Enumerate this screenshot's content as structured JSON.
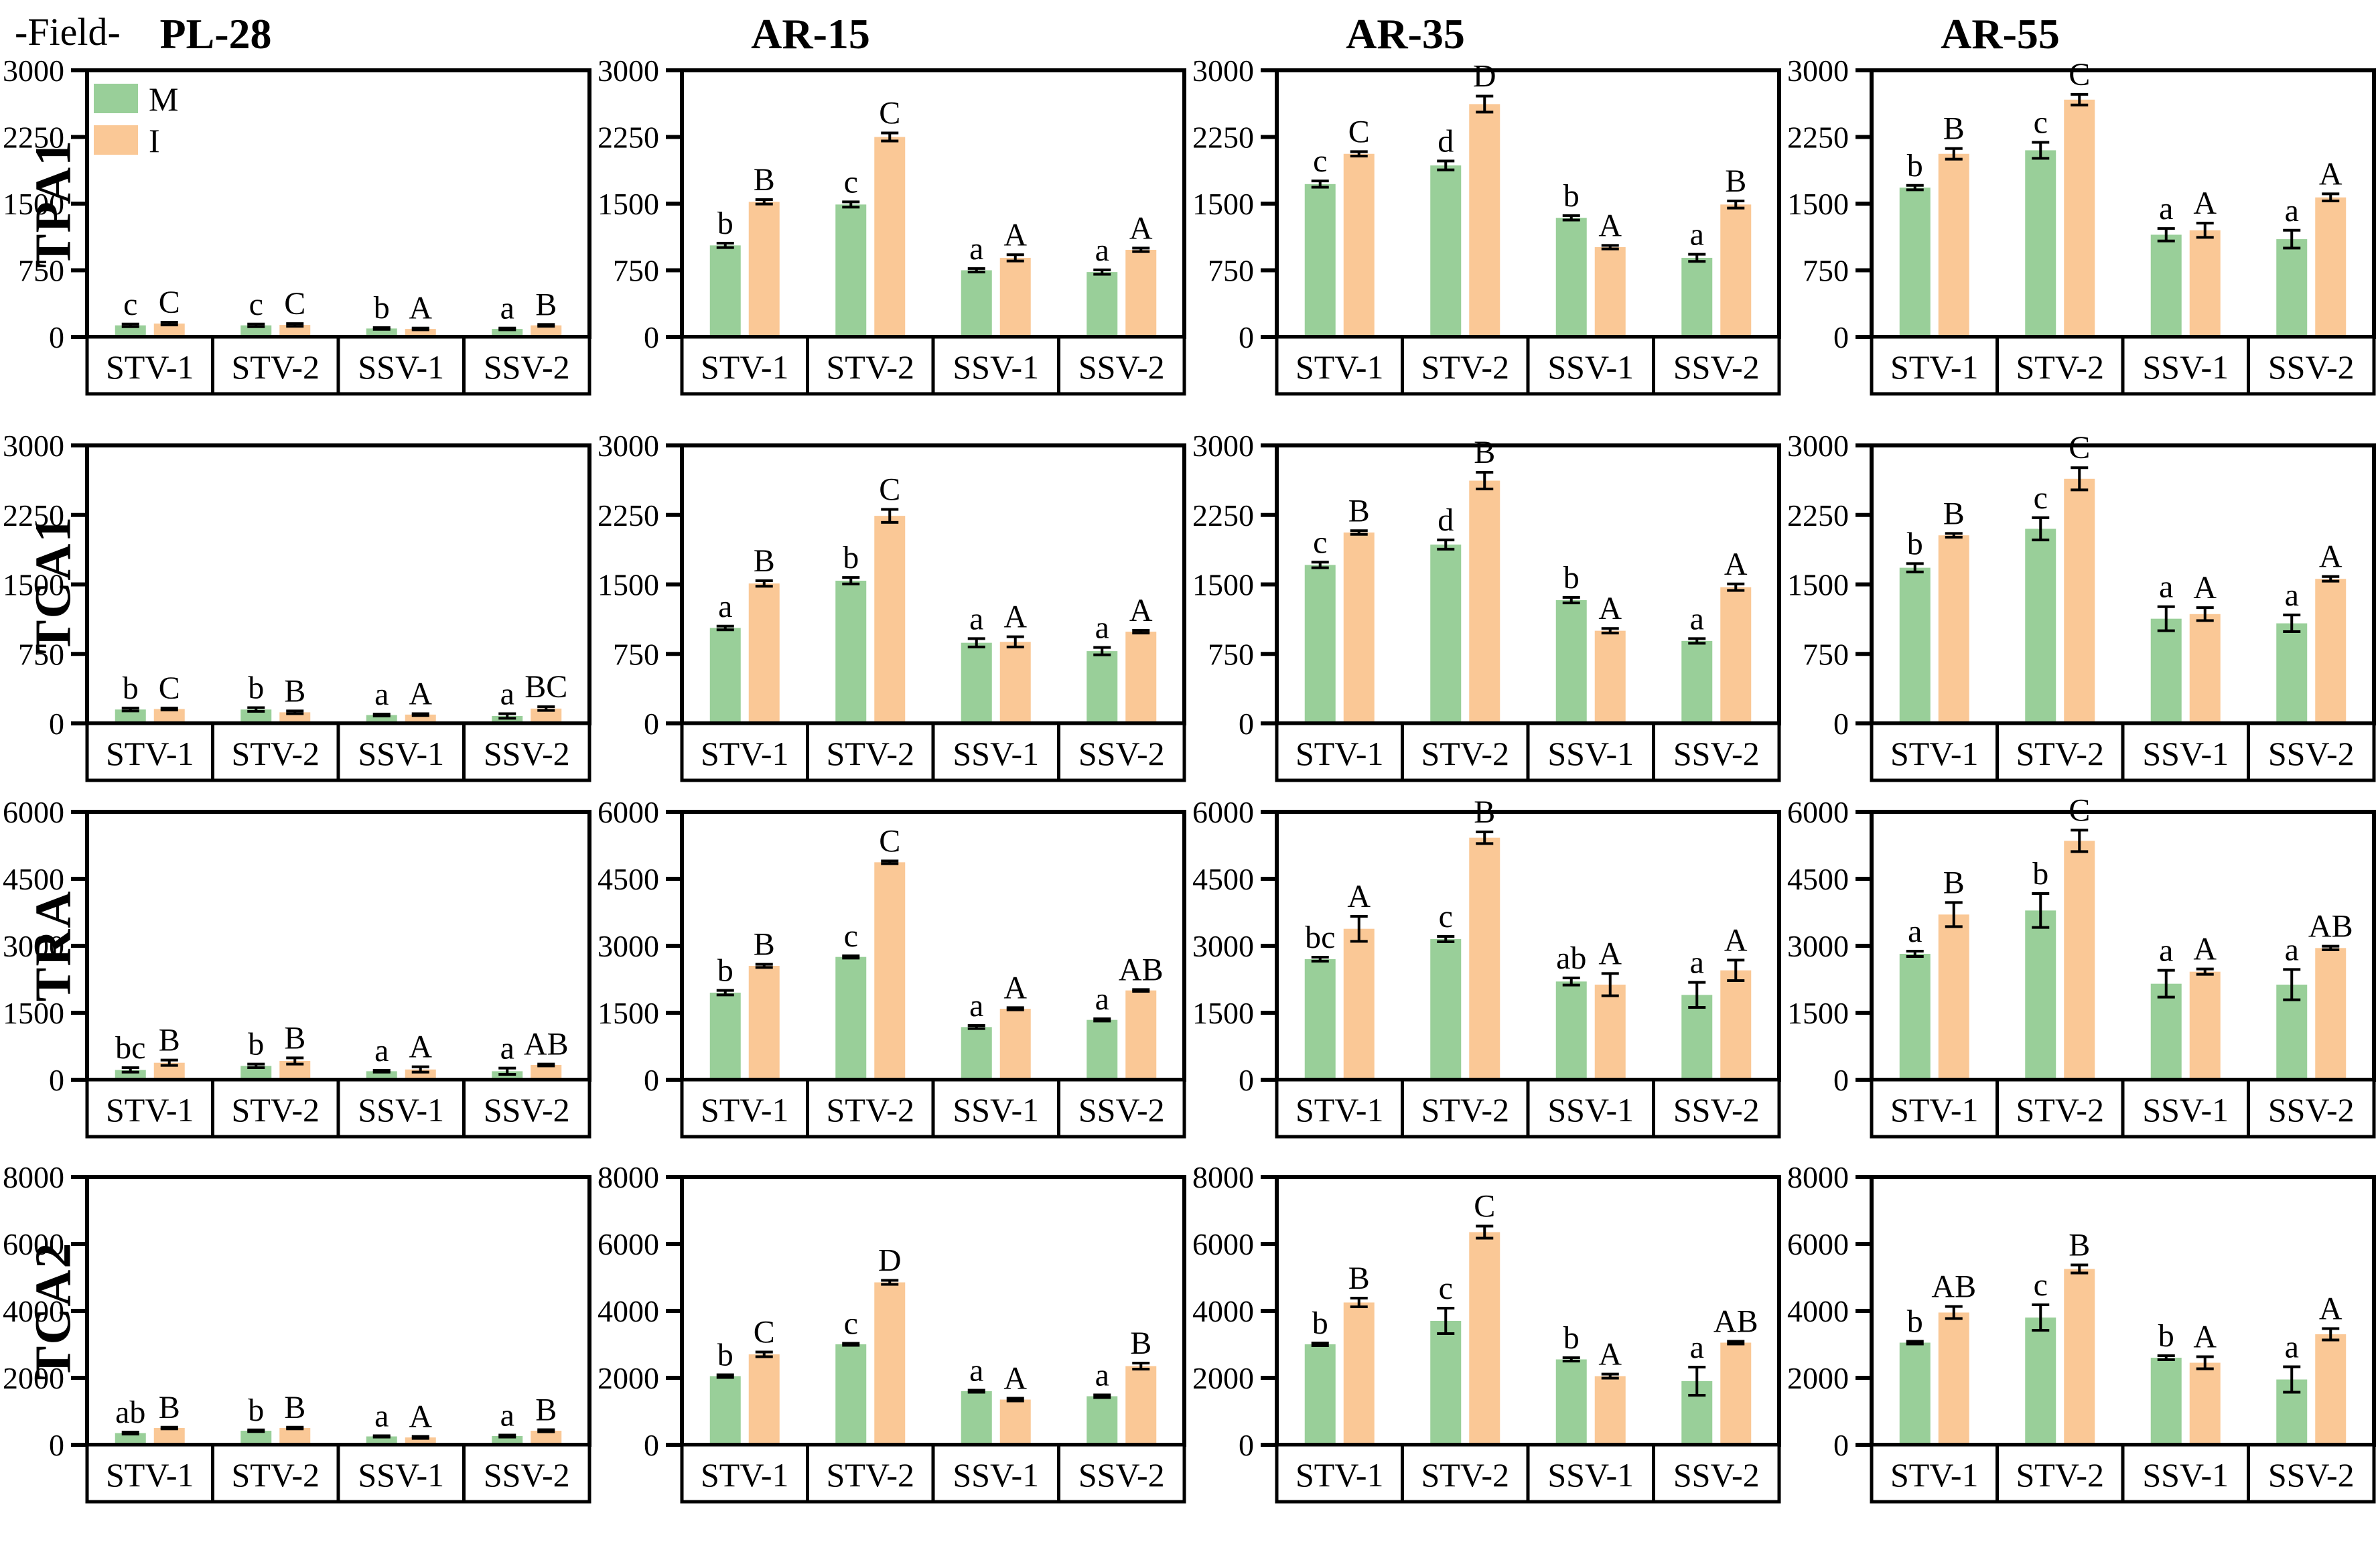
{
  "field_label": "-Field-",
  "column_titles": [
    "PL-28",
    "AR-15",
    "AR-35",
    "AR-55"
  ],
  "row_labels": [
    "TPA1",
    "TCA1",
    "TRA",
    "TCA2"
  ],
  "categories": [
    "STV-1",
    "STV-2",
    "SSV-1",
    "SSV-2"
  ],
  "legend": {
    "position": "top-left of first subplot",
    "items": [
      {
        "label": "M",
        "color": "#99CF99"
      },
      {
        "label": "I",
        "color": "#FAC896"
      }
    ]
  },
  "colors": {
    "bar_m": "#99CF99",
    "bar_i": "#FAC896",
    "axis": "#000000",
    "background": "#ffffff"
  },
  "chart_data": {
    "type": "bar",
    "layout": "4x4 grid of grouped bar subplots with error bars and significance letters",
    "categories": [
      "STV-1",
      "STV-2",
      "SSV-1",
      "SSV-2"
    ],
    "series_names": [
      "M",
      "I"
    ],
    "columns": [
      "PL-28",
      "AR-15",
      "AR-35",
      "AR-55"
    ],
    "grid": false,
    "rows": [
      {
        "ylabel": "TPA1",
        "ylim": [
          0,
          3000
        ],
        "yticks": [
          0,
          750,
          1500,
          2250,
          3000
        ],
        "cells": [
          {
            "column": "PL-28",
            "M": {
              "values": [
                130,
                130,
                95,
                90
              ],
              "errors": [
                15,
                15,
                10,
                10
              ],
              "letters": [
                "c",
                "c",
                "b",
                "a"
              ]
            },
            "I": {
              "values": [
                150,
                135,
                90,
                130
              ],
              "errors": [
                15,
                15,
                10,
                10
              ],
              "letters": [
                "C",
                "C",
                "A",
                "B"
              ]
            }
          },
          {
            "column": "AR-15",
            "M": {
              "values": [
                1030,
                1490,
                750,
                730
              ],
              "errors": [
                25,
                30,
                20,
                25
              ],
              "letters": [
                "b",
                "c",
                "a",
                "a"
              ]
            },
            "I": {
              "values": [
                1520,
                2250,
                890,
                980
              ],
              "errors": [
                25,
                45,
                35,
                20
              ],
              "letters": [
                "B",
                "C",
                "A",
                "A"
              ]
            }
          },
          {
            "column": "AR-35",
            "M": {
              "values": [
                1720,
                1930,
                1340,
                890
              ],
              "errors": [
                35,
                50,
                25,
                40
              ],
              "letters": [
                "c",
                "d",
                "b",
                "a"
              ]
            },
            "I": {
              "values": [
                2060,
                2620,
                1010,
                1490
              ],
              "errors": [
                25,
                90,
                20,
                40
              ],
              "letters": [
                "C",
                "D",
                "A",
                "B"
              ]
            }
          },
          {
            "column": "AR-55",
            "M": {
              "values": [
                1680,
                2100,
                1150,
                1100
              ],
              "errors": [
                25,
                90,
                70,
                100
              ],
              "letters": [
                "b",
                "c",
                "a",
                "a"
              ]
            },
            "I": {
              "values": [
                2060,
                2670,
                1200,
                1570
              ],
              "errors": [
                60,
                60,
                80,
                40
              ],
              "letters": [
                "B",
                "C",
                "A",
                "A"
              ]
            }
          }
        ]
      },
      {
        "ylabel": "TCA1",
        "ylim": [
          0,
          3000
        ],
        "yticks": [
          0,
          750,
          1500,
          2250,
          3000
        ],
        "cells": [
          {
            "column": "PL-28",
            "M": {
              "values": [
                150,
                150,
                90,
                80
              ],
              "errors": [
                15,
                20,
                10,
                25
              ],
              "letters": [
                "b",
                "b",
                "a",
                "a"
              ]
            },
            "I": {
              "values": [
                155,
                120,
                95,
                160
              ],
              "errors": [
                10,
                15,
                10,
                20
              ],
              "letters": [
                "C",
                "B",
                "A",
                "BC"
              ]
            }
          },
          {
            "column": "AR-15",
            "M": {
              "values": [
                1030,
                1540,
                870,
                780
              ],
              "errors": [
                20,
                35,
                45,
                40
              ],
              "letters": [
                "a",
                "b",
                "a",
                "a"
              ]
            },
            "I": {
              "values": [
                1510,
                2240,
                880,
                990
              ],
              "errors": [
                30,
                70,
                55,
                15
              ],
              "letters": [
                "B",
                "C",
                "A",
                "A"
              ]
            }
          },
          {
            "column": "AR-35",
            "M": {
              "values": [
                1710,
                1930,
                1330,
                890
              ],
              "errors": [
                30,
                50,
                30,
                25
              ],
              "letters": [
                "c",
                "d",
                "b",
                "a"
              ]
            },
            "I": {
              "values": [
                2060,
                2620,
                1000,
                1470
              ],
              "errors": [
                20,
                90,
                25,
                35
              ],
              "letters": [
                "B",
                "B",
                "A",
                "A"
              ]
            }
          },
          {
            "column": "AR-55",
            "M": {
              "values": [
                1680,
                2100,
                1130,
                1080
              ],
              "errors": [
                45,
                120,
                130,
                90
              ],
              "letters": [
                "b",
                "c",
                "a",
                "a"
              ]
            },
            "I": {
              "values": [
                2030,
                2640,
                1180,
                1560
              ],
              "errors": [
                20,
                120,
                70,
                25
              ],
              "letters": [
                "B",
                "C",
                "A",
                "A"
              ]
            }
          }
        ]
      },
      {
        "ylabel": "TRA",
        "ylim": [
          0,
          6000
        ],
        "yticks": [
          0,
          1500,
          3000,
          4500,
          6000
        ],
        "cells": [
          {
            "column": "PL-28",
            "M": {
              "values": [
                220,
                310,
                190,
                190
              ],
              "errors": [
                50,
                40,
                20,
                70
              ],
              "letters": [
                "bc",
                "b",
                "a",
                "a"
              ]
            },
            "I": {
              "values": [
                380,
                420,
                230,
                330
              ],
              "errors": [
                60,
                70,
                60,
                20
              ],
              "letters": [
                "B",
                "B",
                "A",
                "AB"
              ]
            }
          },
          {
            "column": "AR-15",
            "M": {
              "values": [
                1950,
                2750,
                1180,
                1340
              ],
              "errors": [
                50,
                25,
                35,
                25
              ],
              "letters": [
                "b",
                "c",
                "a",
                "a"
              ]
            },
            "I": {
              "values": [
                2550,
                4870,
                1590,
                2000
              ],
              "errors": [
                35,
                30,
                25,
                20
              ],
              "letters": [
                "B",
                "C",
                "A",
                "AB"
              ]
            }
          },
          {
            "column": "AR-35",
            "M": {
              "values": [
                2700,
                3150,
                2200,
                1900
              ],
              "errors": [
                45,
                60,
                80,
                280
              ],
              "letters": [
                "bc",
                "c",
                "ab",
                "a"
              ]
            },
            "I": {
              "values": [
                3380,
                5420,
                2130,
                2450
              ],
              "errors": [
                280,
                130,
                250,
                230
              ],
              "letters": [
                "A",
                "B",
                "A",
                "A"
              ]
            }
          },
          {
            "column": "AR-55",
            "M": {
              "values": [
                2820,
                3790,
                2150,
                2130
              ],
              "errors": [
                60,
                380,
                300,
                340
              ],
              "letters": [
                "a",
                "b",
                "a",
                "a"
              ]
            },
            "I": {
              "values": [
                3700,
                5350,
                2420,
                2950
              ],
              "errors": [
                270,
                240,
                60,
                40
              ],
              "letters": [
                "B",
                "C",
                "A",
                "AB"
              ]
            }
          }
        ]
      },
      {
        "ylabel": "TCA2",
        "ylim": [
          0,
          8000
        ],
        "yticks": [
          0,
          2000,
          4000,
          6000,
          8000
        ],
        "cells": [
          {
            "column": "PL-28",
            "M": {
              "values": [
                350,
                420,
                250,
                260
              ],
              "errors": [
                30,
                25,
                20,
                30
              ],
              "letters": [
                "ab",
                "b",
                "a",
                "a"
              ]
            },
            "I": {
              "values": [
                500,
                500,
                220,
                420
              ],
              "errors": [
                25,
                25,
                30,
                30
              ],
              "letters": [
                "B",
                "B",
                "A",
                "B"
              ]
            }
          },
          {
            "column": "AR-15",
            "M": {
              "values": [
                2050,
                3000,
                1600,
                1450
              ],
              "errors": [
                40,
                30,
                30,
                40
              ],
              "letters": [
                "b",
                "c",
                "a",
                "a"
              ]
            },
            "I": {
              "values": [
                2700,
                4850,
                1350,
                2350
              ],
              "errors": [
                70,
                60,
                40,
                90
              ],
              "letters": [
                "C",
                "D",
                "A",
                "B"
              ]
            }
          },
          {
            "column": "AR-35",
            "M": {
              "values": [
                3000,
                3700,
                2550,
                1900
              ],
              "errors": [
                40,
                380,
                50,
                420
              ],
              "letters": [
                "b",
                "c",
                "b",
                "a"
              ]
            },
            "I": {
              "values": [
                4250,
                6350,
                2050,
                3050
              ],
              "errors": [
                130,
                180,
                60,
                40
              ],
              "letters": [
                "B",
                "C",
                "A",
                "AB"
              ]
            }
          },
          {
            "column": "AR-55",
            "M": {
              "values": [
                3050,
                3800,
                2600,
                1950
              ],
              "errors": [
                40,
                380,
                60,
                380
              ],
              "letters": [
                "b",
                "c",
                "b",
                "a"
              ]
            },
            "I": {
              "values": [
                3950,
                5250,
                2450,
                3300
              ],
              "errors": [
                180,
                120,
                180,
                170
              ],
              "letters": [
                "AB",
                "B",
                "A",
                "A"
              ]
            }
          }
        ]
      }
    ]
  }
}
